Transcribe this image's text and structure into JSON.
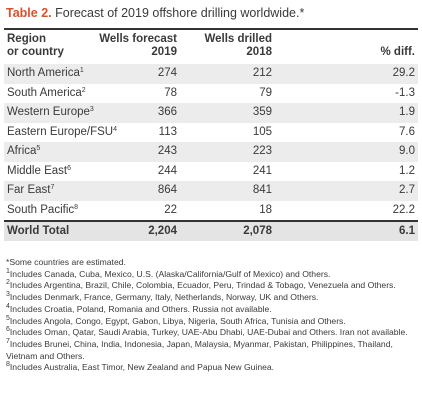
{
  "title": {
    "label": "Table 2.",
    "text": "Forecast of 2019 offshore drilling worldwide.*"
  },
  "table": {
    "header": [
      [
        "Region",
        "or country"
      ],
      [
        "Wells forecast",
        "2019"
      ],
      [
        "Wells drilled",
        "2018"
      ],
      [
        "",
        "% diff."
      ]
    ],
    "rows": [
      {
        "region": "North America",
        "note": "1",
        "forecast": "274",
        "drilled": "212",
        "diff": "29.2"
      },
      {
        "region": "South America",
        "note": "2",
        "forecast": "78",
        "drilled": "79",
        "diff": "-1.3"
      },
      {
        "region": "Western Europe",
        "note": "3",
        "forecast": "366",
        "drilled": "359",
        "diff": "1.9"
      },
      {
        "region": "Eastern Europe/FSU",
        "note": "4",
        "forecast": "113",
        "drilled": "105",
        "diff": "7.6"
      },
      {
        "region": "Africa",
        "note": "5",
        "forecast": "243",
        "drilled": "223",
        "diff": "9.0"
      },
      {
        "region": "Middle East",
        "note": "6",
        "forecast": "244",
        "drilled": "241",
        "diff": "1.2"
      },
      {
        "region": "Far East",
        "note": "7",
        "forecast": "864",
        "drilled": "841",
        "diff": "2.7"
      },
      {
        "region": "South Pacific",
        "note": "8",
        "forecast": "22",
        "drilled": "18",
        "diff": "22.2"
      }
    ],
    "total": {
      "region": "World Total",
      "forecast": "2,204",
      "drilled": "2,078",
      "diff": "6.1"
    }
  },
  "footnotes": {
    "star": "*Some countries are estimated.",
    "notes": [
      {
        "n": "1",
        "text": "Includes Canada, Cuba, Mexico, U.S. (Alaska/California/Gulf of Mexico) and Others."
      },
      {
        "n": "2",
        "text": "Includes Argentina, Brazil, Chile, Colombia, Ecuador, Peru, Trindad & Tobago, Venezuela and Others."
      },
      {
        "n": "3",
        "text": "Includes Denmark, France, Germany, Italy, Netherlands, Norway, UK and Others."
      },
      {
        "n": "4",
        "text": "Includes Croatia, Poland, Romania and Others. Russia not available."
      },
      {
        "n": "5",
        "text": "Includes Angola, Congo, Egypt, Gabon, Libya, Nigeria, South Africa, Tunisia and Others."
      },
      {
        "n": "6",
        "text": "Includes Oman, Qatar, Saudi Arabia, Turkey, UAE-Abu Dhabi, UAE-Dubai and Others. Iran not available."
      },
      {
        "n": "7",
        "text": "Includes Brunei, China, India, Indonesia, Japan, Malaysia, Myanmar, Pakistan, Philippines, Thailand, Vietnam and Others."
      },
      {
        "n": "8",
        "text": "Includes Australia, East Timor, New Zealand and Papua New Guinea."
      }
    ]
  }
}
